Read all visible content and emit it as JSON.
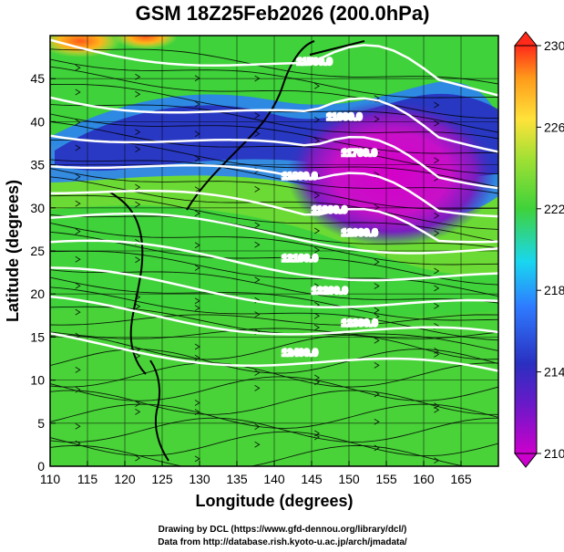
{
  "chart_data": {
    "type": "heatmap",
    "title": "GSM 18Z25Feb2026 (200.0hPa)",
    "xlabel": "Longitude (degrees)",
    "ylabel": "Latitude  (degrees)",
    "xlim": [
      110,
      170
    ],
    "ylim": [
      0,
      50
    ],
    "x_ticks": [
      "110",
      "115",
      "120",
      "125",
      "130",
      "135",
      "140",
      "145",
      "150",
      "155",
      "160",
      "165"
    ],
    "y_ticks": [
      "0",
      "5",
      "10",
      "15",
      "20",
      "25",
      "30",
      "35",
      "40",
      "45"
    ],
    "fill_variable": "temperature (K)",
    "colorbar": {
      "range": [
        210,
        230
      ],
      "labels": [
        "230",
        "226",
        "222",
        "218",
        "214",
        "210"
      ],
      "colors": [
        "#cc00cc",
        "#3a1fb0",
        "#2e7bff",
        "#19d7f0",
        "#3fd23a",
        "#b6e832",
        "#ffe23a",
        "#ff9b1a",
        "#ff2a1a"
      ]
    },
    "contour_variable": "geopotential height (m)",
    "contour_levels": [
      {
        "label": "11500.0",
        "lat": 49.5
      },
      {
        "label": "11600.0",
        "lat": 43.5
      },
      {
        "label": "11700.0",
        "lat": 39.5
      },
      {
        "label": "11800.0",
        "lat": 36.0
      },
      {
        "label": "11900.0",
        "lat": 32.5
      },
      {
        "label": "12000.0",
        "lat": 29.0
      },
      {
        "label": "12100.0",
        "lat": 25.5
      },
      {
        "label": "12200.0",
        "lat": 22.0
      },
      {
        "label": "12300.0",
        "lat": 18.5
      },
      {
        "label": "12400.0",
        "lat": 14.5
      }
    ],
    "temperature_features": [
      {
        "name": "cold-core",
        "lon": 153,
        "lat": 35.5,
        "value": 211
      },
      {
        "name": "cold-band",
        "lon": 125,
        "lat": 40,
        "value": 214
      },
      {
        "name": "warm-nw",
        "lon": 113,
        "lat": 49,
        "value": 227
      },
      {
        "name": "warm-top",
        "lon": 123,
        "lat": 49.5,
        "value": 229
      }
    ],
    "credits": [
      "Drawing by DCL (https://www.gfd-dennou.org/library/dcl/)",
      "Data from http://database.rish.kyoto-u.ac.jp/arch/jmadata/"
    ]
  }
}
